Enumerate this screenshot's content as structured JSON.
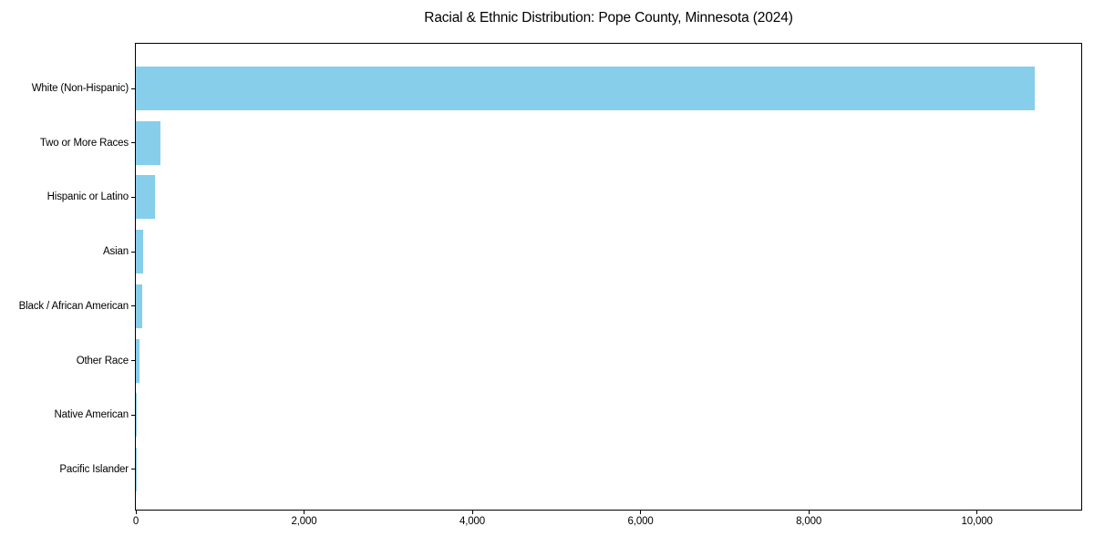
{
  "figure": {
    "background": "#ffffff"
  },
  "chart_data": {
    "type": "bar",
    "orientation": "horizontal",
    "title": "Racial & Ethnic Distribution: Pope County, Minnesota (2024)",
    "categories": [
      "White (Non-Hispanic)",
      "Two or More Races",
      "Hispanic or Latino",
      "Asian",
      "Black / African American",
      "Other Race",
      "Native American",
      "Pacific Islander"
    ],
    "values": [
      10690,
      290,
      225,
      85,
      75,
      42,
      12,
      2
    ],
    "xlabel": "",
    "ylabel": "",
    "xlim": [
      0,
      11240
    ],
    "xticks": [
      0,
      2000,
      4000,
      6000,
      8000,
      10000
    ],
    "xtick_labels": [
      "0",
      "2,000",
      "4,000",
      "6,000",
      "8,000",
      "10,000"
    ],
    "bar_color": "#87CEEB",
    "axis_color": "#000000",
    "text_color": "#000000",
    "grid": false,
    "legend": false
  }
}
